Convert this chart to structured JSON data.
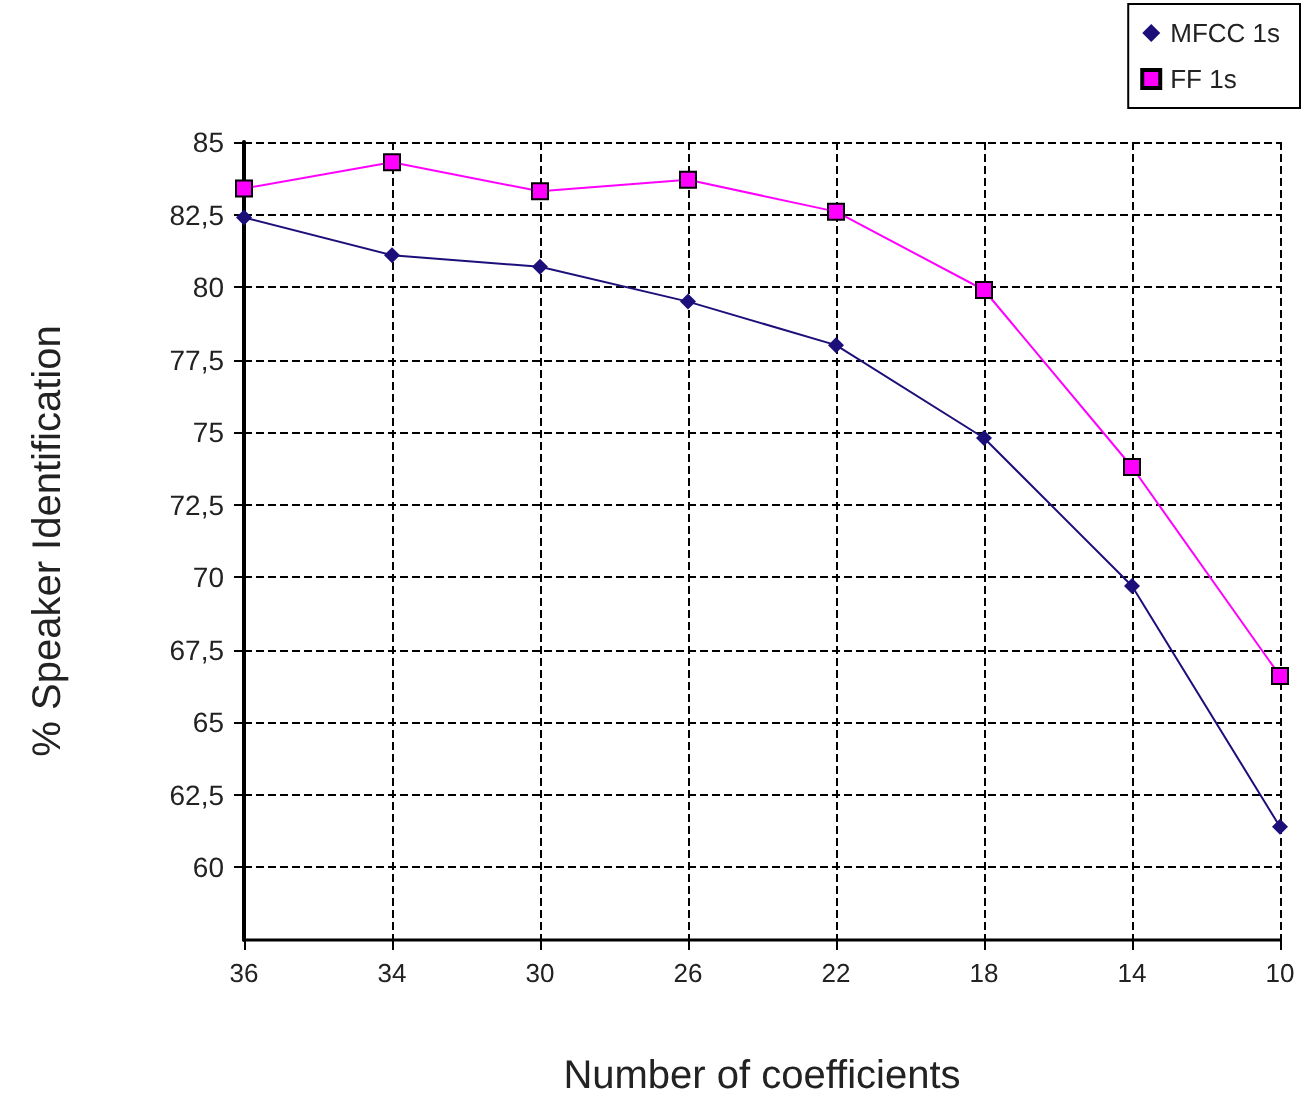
{
  "chart_data": {
    "type": "line",
    "xlabel": "Number of coefficients",
    "ylabel": "% Speaker Identification",
    "categories": [
      "36",
      "34",
      "30",
      "26",
      "22",
      "18",
      "14",
      "10"
    ],
    "series": [
      {
        "name": "MFCC 1s",
        "color": "#1c0f7a",
        "marker": "diamond",
        "values": [
          82.4,
          81.1,
          80.7,
          79.5,
          78.0,
          74.8,
          69.7,
          61.4
        ]
      },
      {
        "name": "FF 1s",
        "color": "#ff00ff",
        "marker": "square",
        "values": [
          83.4,
          84.3,
          83.3,
          83.7,
          82.6,
          79.9,
          73.8,
          66.6
        ]
      }
    ],
    "ylim": [
      57.5,
      85
    ],
    "yticks": [
      {
        "value": 60,
        "label": "60"
      },
      {
        "value": 62.5,
        "label": "62,5"
      },
      {
        "value": 65,
        "label": "65"
      },
      {
        "value": 67.5,
        "label": "67,5"
      },
      {
        "value": 70,
        "label": "70"
      },
      {
        "value": 72.5,
        "label": "72,5"
      },
      {
        "value": 75,
        "label": "75"
      },
      {
        "value": 77.5,
        "label": "77,5"
      },
      {
        "value": 80,
        "label": "80"
      },
      {
        "value": 82.5,
        "label": "82,5"
      },
      {
        "value": 85,
        "label": "85"
      }
    ],
    "grid": true,
    "legend": "top right",
    "line_style": "solid"
  }
}
